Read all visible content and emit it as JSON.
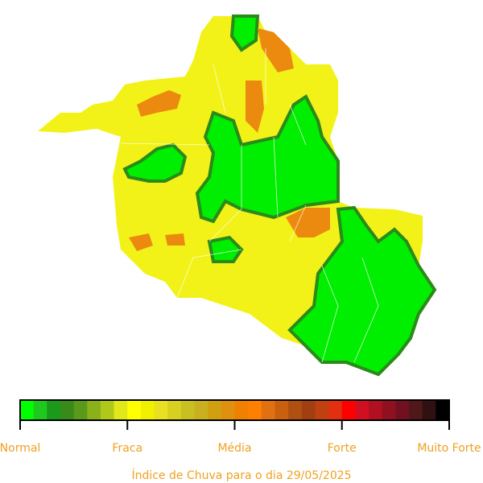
{
  "legend": {
    "labels": [
      "Normal",
      "Fraca",
      "Média",
      "Forte",
      "Muito Forte"
    ],
    "colors": [
      "#00ff00",
      "#1ec81e",
      "#1a9a1a",
      "#3a8a1a",
      "#5a9a1a",
      "#8ab01a",
      "#b0c81a",
      "#e0e81a",
      "#ffff00",
      "#f0f000",
      "#e8e020",
      "#d8d020",
      "#c8c020",
      "#c8b020",
      "#d0a010",
      "#e09010",
      "#f08000",
      "#ff8000",
      "#e07010",
      "#c86010",
      "#b05010",
      "#a04010",
      "#c04010",
      "#e03010",
      "#ff0000",
      "#d01020",
      "#b01020",
      "#901020",
      "#701020",
      "#501818",
      "#301010",
      "#000000"
    ]
  },
  "caption": "Índice de Chuva para o dia 29/05/2025"
}
